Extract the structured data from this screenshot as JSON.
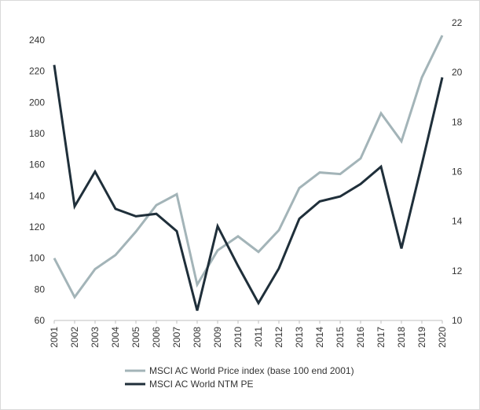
{
  "chart_data": {
    "type": "line",
    "x": [
      "2001",
      "2002",
      "2003",
      "2004",
      "2005",
      "2006",
      "2007",
      "2008",
      "2009",
      "2010",
      "2011",
      "2012",
      "2013",
      "2014",
      "2015",
      "2016",
      "2017",
      "2018",
      "2019",
      "2020"
    ],
    "series": [
      {
        "name": "MSCI AC World Price index (base 100 end 2001)",
        "axis": "left",
        "color": "#a3b4b8",
        "values": [
          100,
          75,
          93,
          102,
          117,
          134,
          141,
          83,
          105,
          114,
          104,
          118,
          145,
          155,
          154,
          164,
          193,
          175,
          216,
          243
        ]
      },
      {
        "name": "MSCI AC World NTM PE",
        "axis": "right",
        "color": "#1f2f3a",
        "values": [
          20.3,
          14.6,
          16.0,
          14.5,
          14.2,
          14.3,
          13.6,
          10.4,
          13.8,
          12.2,
          10.7,
          12.1,
          14.1,
          14.8,
          15.0,
          15.5,
          16.2,
          12.9,
          16.3,
          19.8
        ]
      }
    ],
    "y_left": {
      "min": 60,
      "max": 240,
      "ticks": [
        60,
        80,
        100,
        120,
        140,
        160,
        180,
        200,
        220,
        240
      ]
    },
    "y_right": {
      "min": 10,
      "max": 22,
      "ticks": [
        10,
        12,
        14,
        16,
        18,
        20,
        22
      ]
    },
    "grid": false,
    "legend_position": "bottom"
  }
}
